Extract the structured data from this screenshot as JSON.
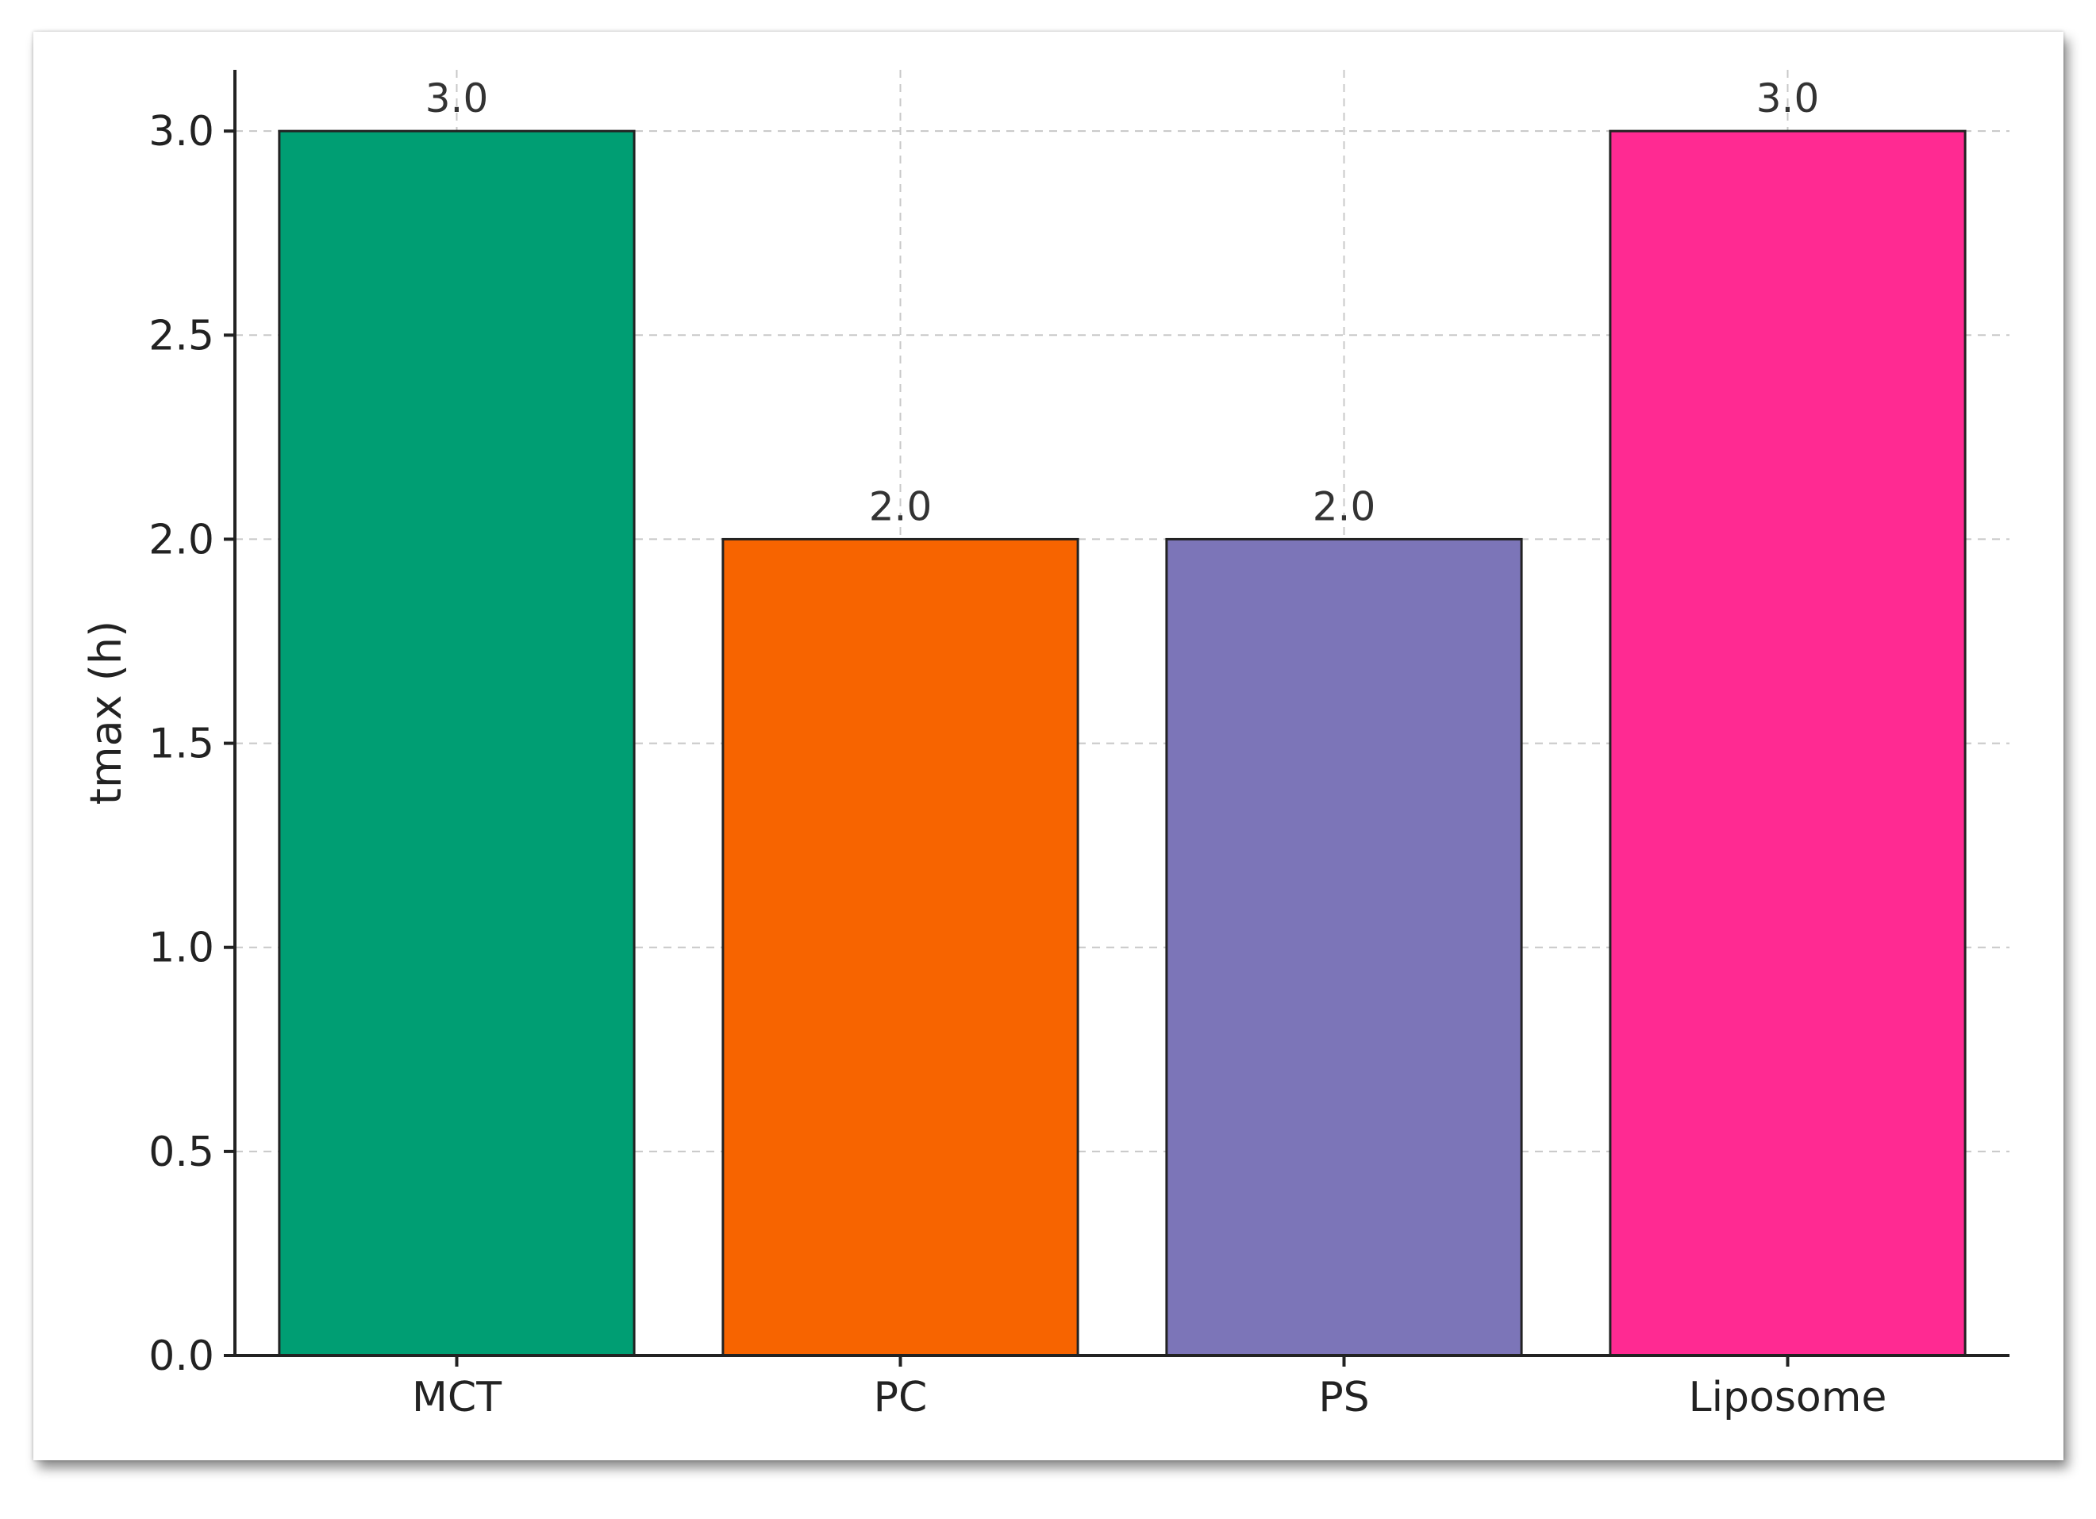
{
  "chart_data": {
    "type": "bar",
    "categories": [
      "MCT",
      "PC",
      "PS",
      "Liposome"
    ],
    "values": [
      3.0,
      2.0,
      2.0,
      3.0
    ],
    "data_labels": [
      "3.0",
      "2.0",
      "2.0",
      "3.0"
    ],
    "colors": [
      "#009E73",
      "#F76400",
      "#7C75B8",
      "#FF2A92"
    ],
    "xlabel": "",
    "ylabel": "tmax (h)",
    "ylim": [
      0,
      3.15
    ],
    "yticks": [
      0.0,
      0.5,
      1.0,
      1.5,
      2.0,
      2.5,
      3.0
    ],
    "ytick_labels": [
      "0.0",
      "0.5",
      "1.0",
      "1.5",
      "2.0",
      "2.5",
      "3.0"
    ],
    "grid": true,
    "grid_style": "dashed"
  }
}
